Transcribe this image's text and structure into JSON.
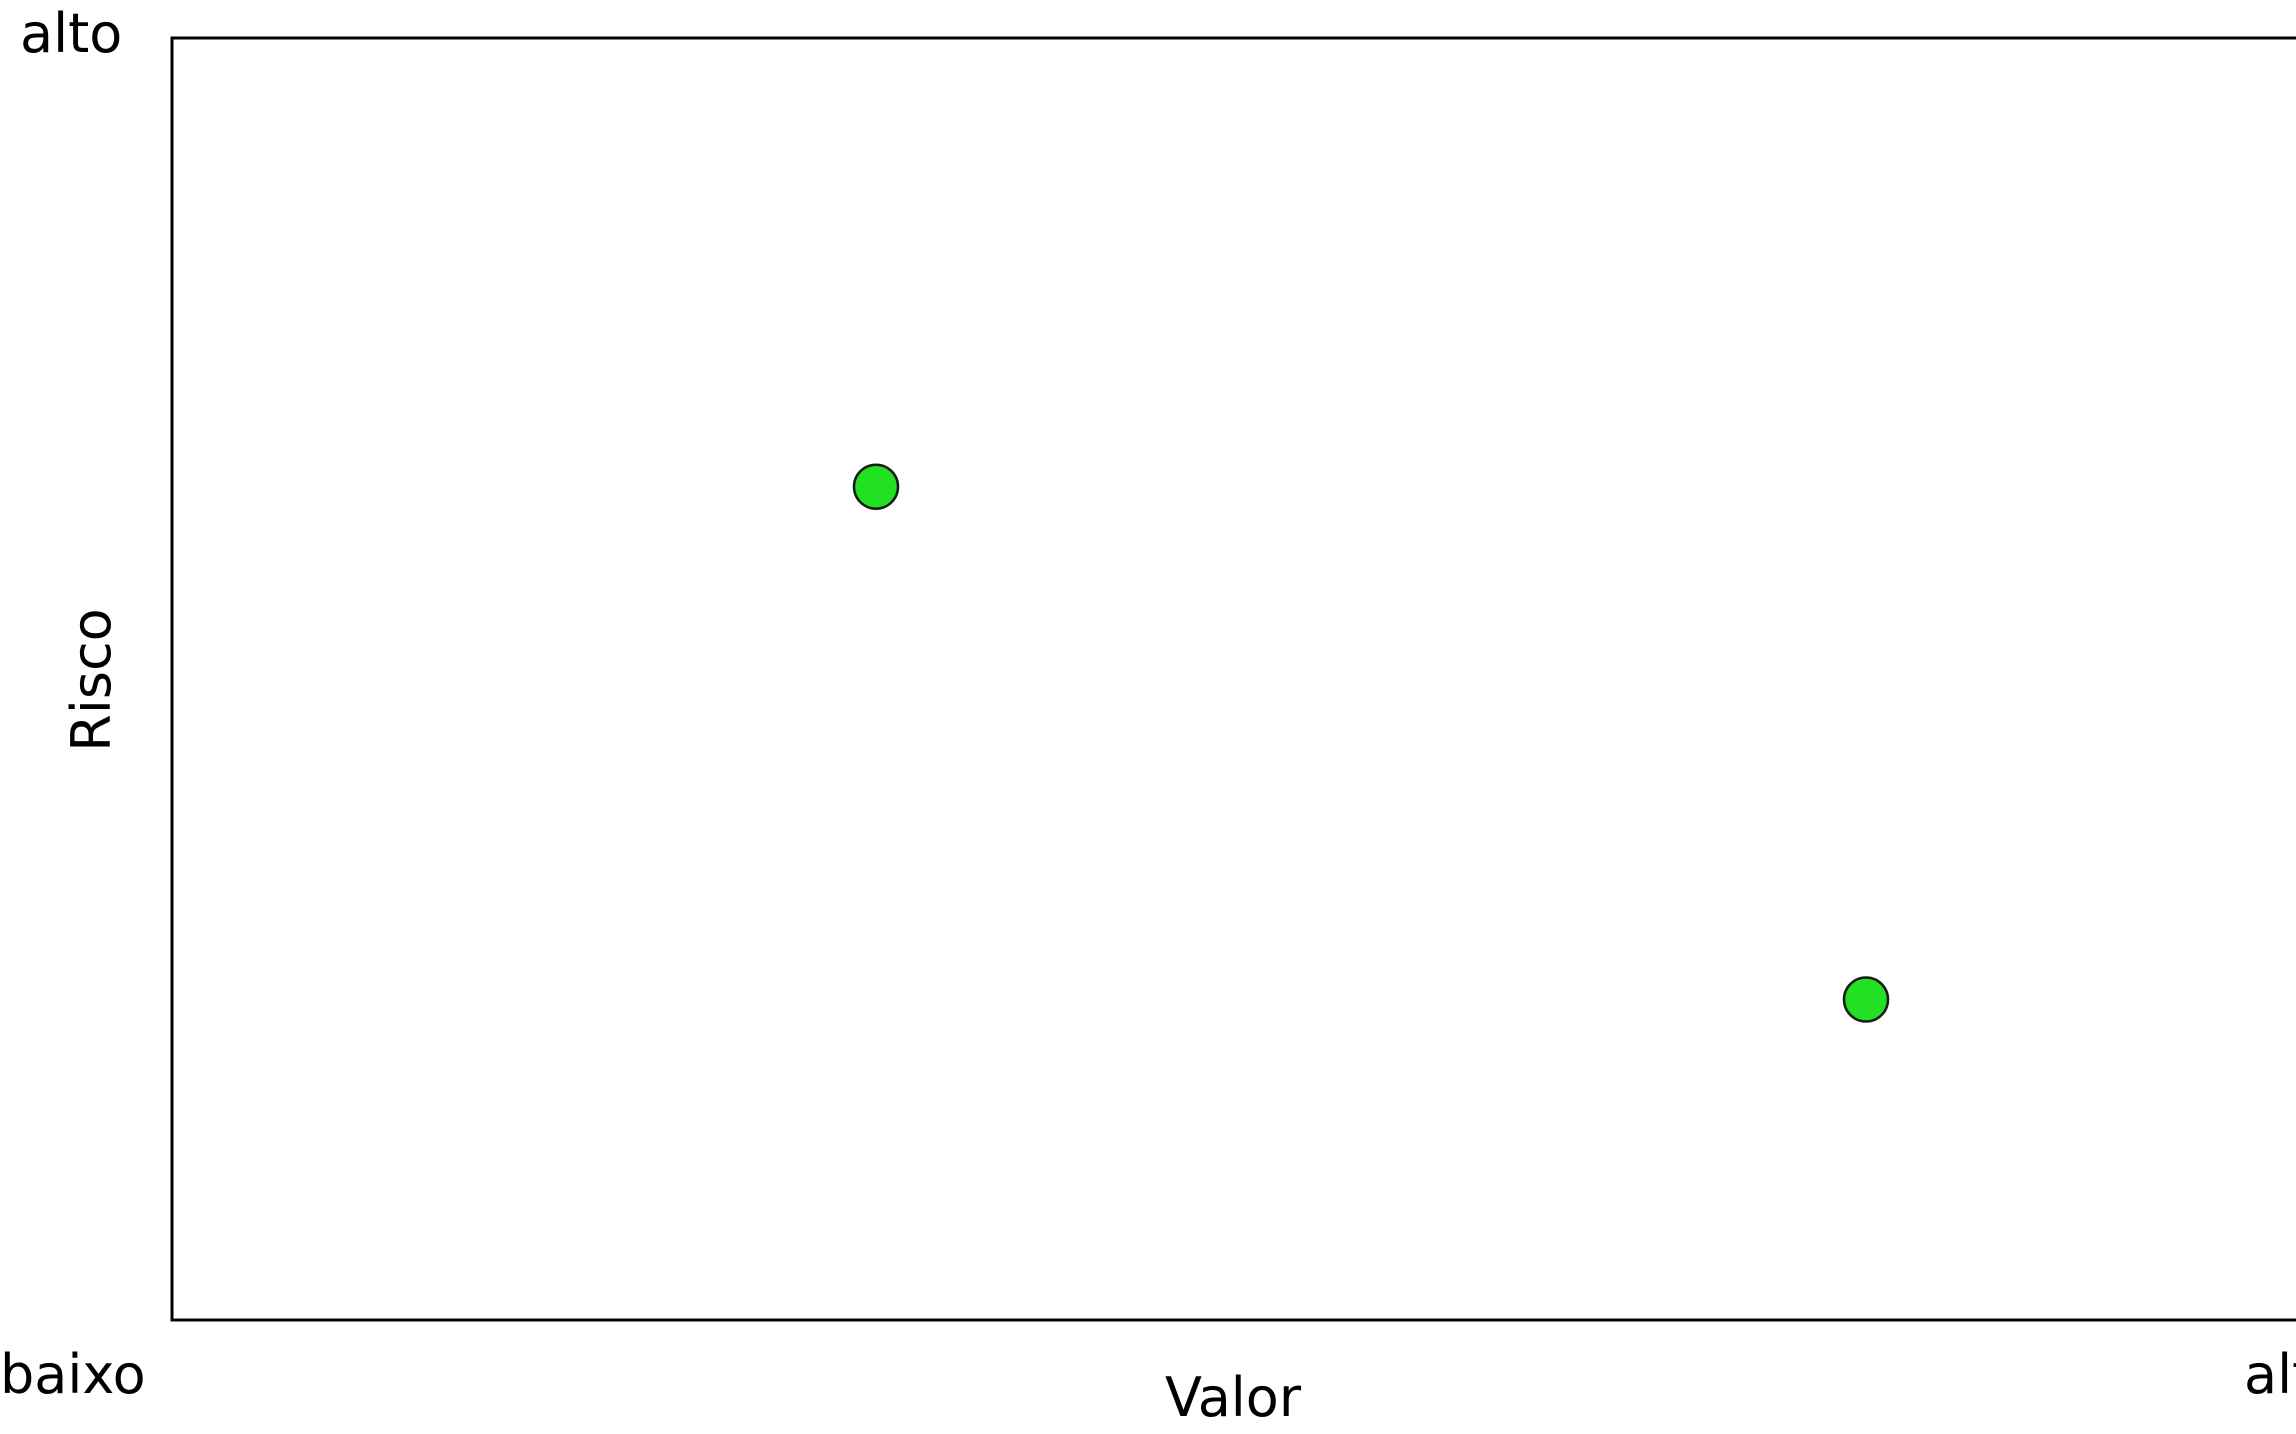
{
  "chart_data": {
    "type": "scatter",
    "title": "",
    "xlabel": "Valor",
    "ylabel": "Risco",
    "x_range": [
      0,
      100
    ],
    "y_range": [
      0,
      100
    ],
    "x_end_labels": {
      "low": "baixo",
      "high": "alto"
    },
    "y_end_labels": {
      "low": "baixo",
      "high": "alto"
    },
    "grid": false,
    "points": [
      {
        "x": 32,
        "y": 65
      },
      {
        "x": 77,
        "y": 25
      }
    ],
    "point_color": "#22e022",
    "point_stroke_color": "#1a1a1a"
  }
}
